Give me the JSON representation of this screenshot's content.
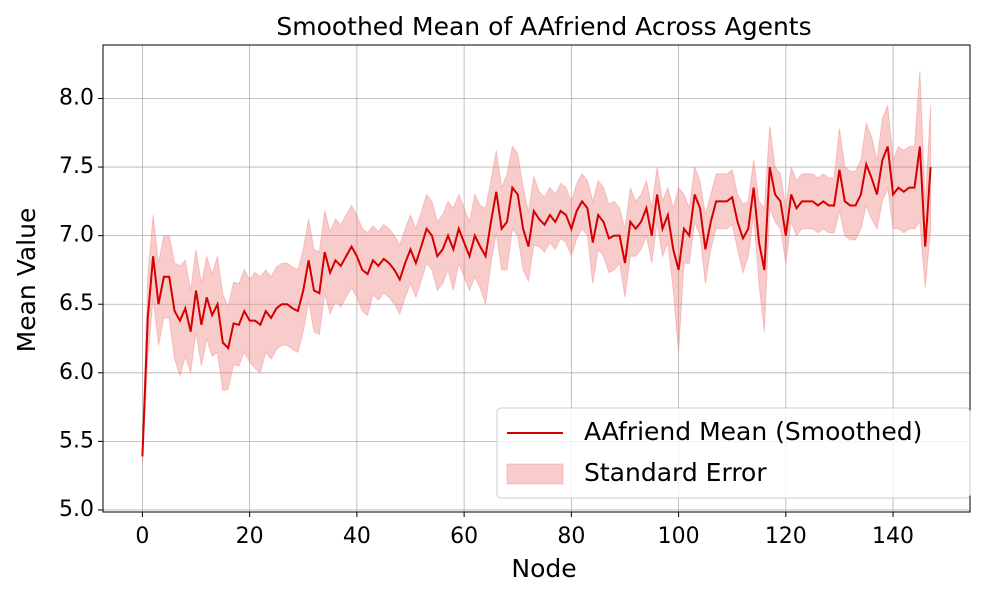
{
  "chart_data": {
    "type": "line",
    "title": "Smoothed Mean of AAfriend Across Agents",
    "x_label": "Node",
    "y_label": "Mean Value",
    "x": [
      0,
      1,
      2,
      3,
      4,
      5,
      6,
      7,
      8,
      9,
      10,
      11,
      12,
      13,
      14,
      15,
      16,
      17,
      18,
      19,
      20,
      21,
      22,
      23,
      24,
      25,
      26,
      27,
      28,
      29,
      30,
      31,
      32,
      33,
      34,
      35,
      36,
      37,
      38,
      39,
      40,
      41,
      42,
      43,
      44,
      45,
      46,
      47,
      48,
      49,
      50,
      51,
      52,
      53,
      54,
      55,
      56,
      57,
      58,
      59,
      60,
      61,
      62,
      63,
      64,
      65,
      66,
      67,
      68,
      69,
      70,
      71,
      72,
      73,
      74,
      75,
      76,
      77,
      78,
      79,
      80,
      81,
      82,
      83,
      84,
      85,
      86,
      87,
      88,
      89,
      90,
      91,
      92,
      93,
      94,
      95,
      96,
      97,
      98,
      99,
      100,
      101,
      102,
      103,
      104,
      105,
      106,
      107,
      108,
      109,
      110,
      111,
      112,
      113,
      114,
      115,
      116,
      117,
      118,
      119,
      120,
      121,
      122,
      123,
      124,
      125,
      126,
      127,
      128,
      129,
      130,
      131,
      132,
      133,
      134,
      135,
      136,
      137,
      138,
      139,
      140,
      141,
      142,
      143,
      144,
      145,
      146,
      147
    ],
    "series": [
      {
        "name": "AAfriend Mean (Smoothed)",
        "color": "#d40000",
        "values": [
          5.39,
          6.4,
          6.85,
          6.5,
          6.7,
          6.7,
          6.45,
          6.38,
          6.47,
          6.3,
          6.6,
          6.35,
          6.55,
          6.42,
          6.5,
          6.22,
          6.18,
          6.36,
          6.35,
          6.45,
          6.38,
          6.38,
          6.35,
          6.45,
          6.4,
          6.47,
          6.5,
          6.5,
          6.47,
          6.45,
          6.6,
          6.82,
          6.6,
          6.58,
          6.88,
          6.73,
          6.82,
          6.78,
          6.85,
          6.92,
          6.85,
          6.75,
          6.72,
          6.82,
          6.78,
          6.83,
          6.8,
          6.75,
          6.68,
          6.8,
          6.9,
          6.8,
          6.92,
          7.05,
          7.0,
          6.85,
          6.9,
          7.0,
          6.9,
          7.05,
          6.95,
          6.85,
          7.0,
          6.92,
          6.85,
          7.1,
          7.32,
          7.05,
          7.1,
          7.35,
          7.3,
          7.05,
          6.92,
          7.18,
          7.12,
          7.08,
          7.15,
          7.1,
          7.18,
          7.15,
          7.05,
          7.18,
          7.25,
          7.2,
          6.95,
          7.15,
          7.1,
          6.98,
          7.0,
          7.0,
          6.8,
          7.1,
          7.05,
          7.1,
          7.2,
          7.0,
          7.3,
          7.05,
          7.15,
          6.9,
          6.75,
          7.05,
          7.0,
          7.3,
          7.2,
          6.9,
          7.1,
          7.25,
          7.25,
          7.25,
          7.28,
          7.1,
          6.98,
          7.05,
          7.35,
          6.95,
          6.75,
          7.5,
          7.3,
          7.25,
          7.0,
          7.3,
          7.2,
          7.25,
          7.25,
          7.25,
          7.22,
          7.25,
          7.22,
          7.22,
          7.48,
          7.25,
          7.22,
          7.22,
          7.3,
          7.52,
          7.42,
          7.3,
          7.55,
          7.65,
          7.3,
          7.35,
          7.32,
          7.35,
          7.35,
          7.65,
          6.92,
          7.5
        ]
      }
    ],
    "error_band": {
      "name": "Standard Error",
      "color": "#f08080",
      "values": [
        0.05,
        0.3,
        0.3,
        0.3,
        0.3,
        0.3,
        0.35,
        0.4,
        0.35,
        0.3,
        0.3,
        0.3,
        0.3,
        0.3,
        0.35,
        0.35,
        0.3,
        0.3,
        0.3,
        0.3,
        0.3,
        0.35,
        0.35,
        0.3,
        0.3,
        0.3,
        0.3,
        0.3,
        0.3,
        0.3,
        0.3,
        0.3,
        0.3,
        0.3,
        0.3,
        0.3,
        0.3,
        0.3,
        0.3,
        0.3,
        0.3,
        0.3,
        0.3,
        0.25,
        0.25,
        0.25,
        0.25,
        0.25,
        0.25,
        0.25,
        0.25,
        0.25,
        0.25,
        0.25,
        0.25,
        0.25,
        0.25,
        0.25,
        0.3,
        0.25,
        0.25,
        0.25,
        0.3,
        0.3,
        0.35,
        0.3,
        0.3,
        0.3,
        0.35,
        0.3,
        0.3,
        0.3,
        0.25,
        0.25,
        0.2,
        0.2,
        0.2,
        0.2,
        0.2,
        0.2,
        0.2,
        0.2,
        0.2,
        0.2,
        0.3,
        0.25,
        0.25,
        0.25,
        0.25,
        0.2,
        0.25,
        0.25,
        0.2,
        0.2,
        0.2,
        0.2,
        0.2,
        0.2,
        0.2,
        0.3,
        0.6,
        0.25,
        0.2,
        0.2,
        0.2,
        0.25,
        0.2,
        0.2,
        0.2,
        0.2,
        0.2,
        0.2,
        0.25,
        0.2,
        0.2,
        0.3,
        0.45,
        0.3,
        0.2,
        0.2,
        0.2,
        0.2,
        0.2,
        0.2,
        0.2,
        0.2,
        0.2,
        0.2,
        0.2,
        0.2,
        0.3,
        0.25,
        0.25,
        0.25,
        0.25,
        0.3,
        0.3,
        0.25,
        0.3,
        0.3,
        0.25,
        0.3,
        0.3,
        0.3,
        0.3,
        0.55,
        0.3,
        0.45
      ]
    },
    "xlim": [
      -7.35,
      154.35
    ],
    "ylim": [
      4.985,
      8.39
    ],
    "xticks": [
      0,
      20,
      40,
      60,
      80,
      100,
      120,
      140
    ],
    "yticks": [
      {
        "value": 5,
        "label": "5.0"
      },
      5.5,
      {
        "value": 6,
        "label": "6.0"
      },
      6.5,
      {
        "value": 7,
        "label": "7.0"
      },
      7.5,
      {
        "value": 8,
        "label": "8.0"
      }
    ],
    "grid": true,
    "legend": "lower right"
  }
}
